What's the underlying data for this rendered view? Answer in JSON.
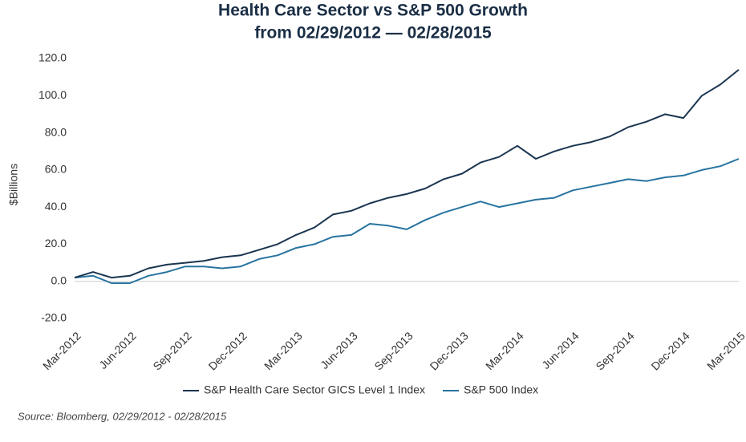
{
  "chart_data": {
    "type": "line",
    "title": [
      "Health Care Sector vs S&P 500 Growth",
      "from 02/29/2012 — 02/28/2015"
    ],
    "y_label": "$Billions",
    "source": "Source: Bloomberg, 02/29/2012 - 02/28/2015",
    "categories": [
      "Mar-2012",
      null,
      null,
      "Jun-2012",
      null,
      null,
      "Sep-2012",
      null,
      null,
      "Dec-2012",
      null,
      null,
      "Mar-2013",
      null,
      null,
      "Jun-2013",
      null,
      null,
      "Sep-2013",
      null,
      null,
      "Dec-2013",
      null,
      null,
      "Mar-2014",
      null,
      null,
      "Jun-2014",
      null,
      null,
      "Sep-2014",
      null,
      null,
      "Dec-2014",
      null,
      null,
      "Mar-2015"
    ],
    "series": [
      {
        "name": "S&P Health Care Sector GICS Level 1 Index",
        "color": "#1a3550",
        "values": [
          2,
          5,
          2,
          3,
          7,
          9,
          10,
          11,
          13,
          14,
          17,
          20,
          25,
          29,
          36,
          38,
          42,
          45,
          47,
          50,
          55,
          58,
          64,
          67,
          73,
          66,
          70,
          73,
          75,
          78,
          83,
          86,
          90,
          88,
          100,
          106,
          114
        ]
      },
      {
        "name": "S&P 500 Index",
        "color": "#2874a0",
        "values": [
          2,
          3,
          -1,
          -1,
          3,
          5,
          8,
          8,
          7,
          8,
          12,
          14,
          18,
          20,
          24,
          25,
          31,
          30,
          28,
          33,
          37,
          40,
          43,
          40,
          42,
          44,
          45,
          49,
          51,
          53,
          55,
          54,
          56,
          57,
          60,
          62,
          66
        ]
      }
    ],
    "ylim": [
      -20,
      120
    ],
    "yticks": [
      {
        "value": -20,
        "label": "-20.0"
      },
      {
        "value": 0,
        "label": "0.0"
      },
      {
        "value": 20,
        "label": "20.0"
      },
      {
        "value": 40,
        "label": "40.0"
      },
      {
        "value": 60,
        "label": "60.0"
      },
      {
        "value": 80,
        "label": "80.0"
      },
      {
        "value": 100,
        "label": "100.0"
      },
      {
        "value": 120,
        "label": "120.0"
      }
    ],
    "legend": "bottom"
  }
}
